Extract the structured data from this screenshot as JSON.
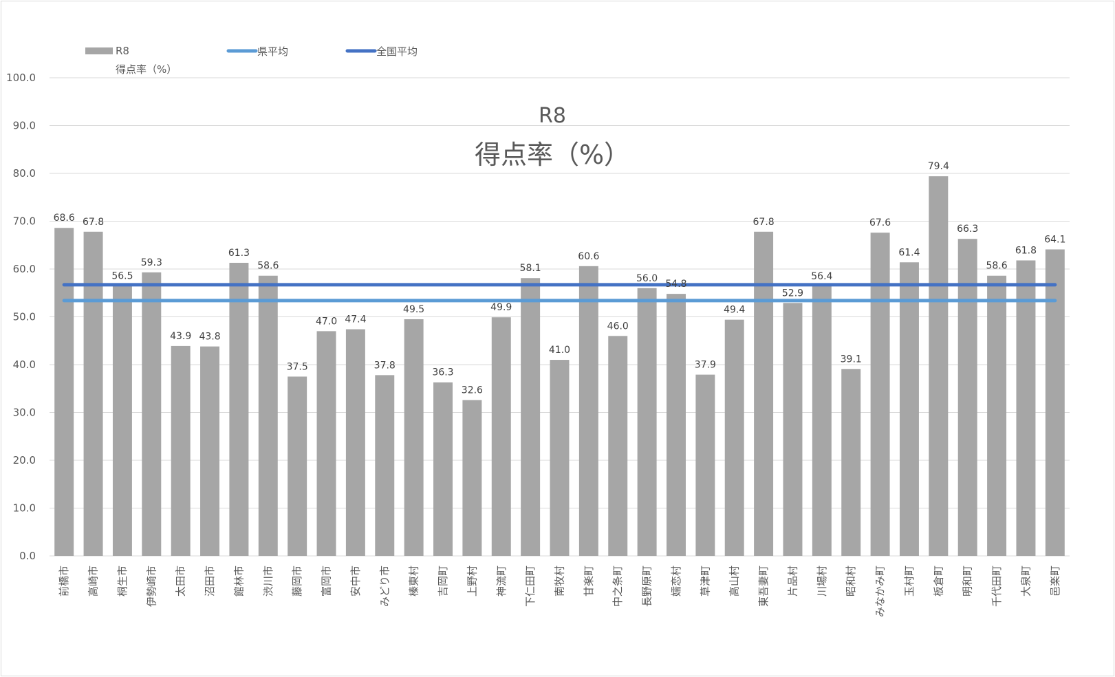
{
  "chart_data": {
    "type": "bar",
    "title": "R8",
    "subtitle": "得点率（%）",
    "categories": [
      "前橋市",
      "高崎市",
      "桐生市",
      "伊勢崎市",
      "太田市",
      "沼田市",
      "館林市",
      "渋川市",
      "藤岡市",
      "富岡市",
      "安中市",
      "みどり市",
      "榛東村",
      "吉岡町",
      "上野村",
      "神流町",
      "下仁田町",
      "南牧村",
      "甘楽町",
      "中之条町",
      "長野原町",
      "嬬恋村",
      "草津町",
      "高山村",
      "東吾妻町",
      "片品村",
      "川場村",
      "昭和村",
      "みなかみ町",
      "玉村町",
      "板倉町",
      "明和町",
      "千代田町",
      "大泉町",
      "邑楽町"
    ],
    "series": [
      {
        "name": "R8 得点率（%）",
        "type": "bar",
        "color": "#a6a6a6",
        "values": [
          68.6,
          67.8,
          56.5,
          59.3,
          43.9,
          43.8,
          61.3,
          58.6,
          37.5,
          47.0,
          47.4,
          37.8,
          49.5,
          36.3,
          32.6,
          49.9,
          58.1,
          41.0,
          60.6,
          46.0,
          56.0,
          54.8,
          37.9,
          49.4,
          67.8,
          52.9,
          56.4,
          39.1,
          67.6,
          61.4,
          79.4,
          66.3,
          58.6,
          61.8,
          64.1
        ],
        "labels": [
          "68.6",
          "67.8",
          "56.5",
          "59.3",
          "43.9",
          "43.8",
          "61.3",
          "58.6",
          "37.5",
          "47.0",
          "47.4",
          "37.8",
          "49.5",
          "36.3",
          "32.6",
          "49.9",
          "58.1",
          "41.0",
          "60.6",
          "46.0",
          "56.0",
          "54.8",
          "37.9",
          "49.4",
          "67.8",
          "52.9",
          "56.4",
          "39.1",
          "67.6",
          "61.4",
          "79.4",
          "66.3",
          "58.6",
          "61.8",
          "64.1"
        ]
      },
      {
        "name": "県平均",
        "type": "line",
        "color": "#5b9bd5",
        "value": 53.4
      },
      {
        "name": "全国平均",
        "type": "line",
        "color": "#4472c4",
        "value": 56.7
      }
    ],
    "legend": {
      "position": "top-left",
      "entries": [
        {
          "label_line1": "R8",
          "label_line2": "得点率（%）",
          "color": "#a6a6a6",
          "kind": "bar"
        },
        {
          "label_line1": "県平均",
          "label_line2": "",
          "color": "#5b9bd5",
          "kind": "line"
        },
        {
          "label_line1": "全国平均",
          "label_line2": "",
          "color": "#4472c4",
          "kind": "line"
        }
      ]
    },
    "ylim": [
      0,
      100
    ],
    "yticks": [
      "0.0",
      "10.0",
      "20.0",
      "30.0",
      "40.0",
      "50.0",
      "60.0",
      "70.0",
      "80.0",
      "90.0",
      "100.0"
    ],
    "ytick_values": [
      0,
      10,
      20,
      30,
      40,
      50,
      60,
      70,
      80,
      90,
      100
    ],
    "grid": true,
    "xlabel": "",
    "ylabel": ""
  }
}
